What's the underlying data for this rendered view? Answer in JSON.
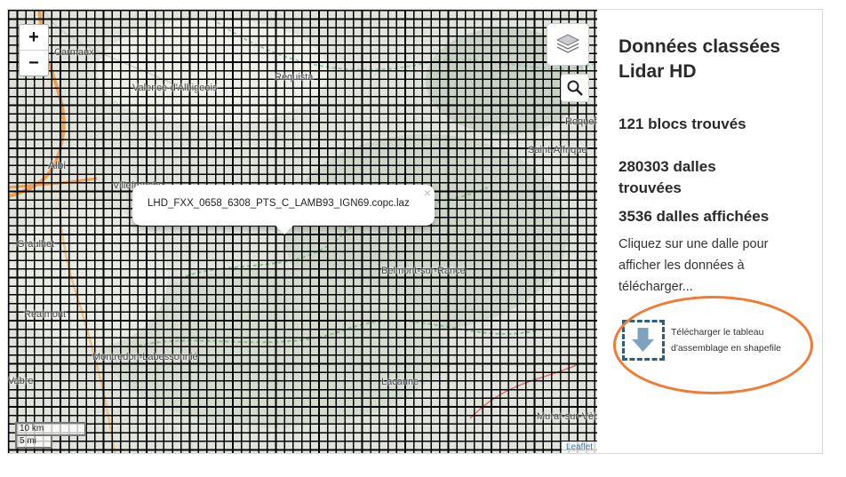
{
  "map": {
    "zoom_in_label": "+",
    "zoom_out_label": "−",
    "layers_icon": "layers-icon",
    "search_icon": "search-icon",
    "popup": {
      "text": "LHD_FXX_0658_6308_PTS_C_LAMB93_IGN69.copc.laz",
      "close_label": "×"
    },
    "scale": {
      "km_label": "10 km",
      "mi_label": "5 mi"
    },
    "attribution": "Leaflet",
    "places": [
      "Carmaux",
      "Valence-d'Albigeois",
      "Réquista",
      "Albi",
      "Villefranche",
      "Belmont-sur-Rance",
      "Réalmont",
      "Montredon-Labessonnié",
      "Lacaune",
      "Murat-sur-Vèbre",
      "Saint-Affrique",
      "Roquefort",
      "Graulhet",
      "Vabre"
    ],
    "colors": {
      "grid": "#000000",
      "road": "#f0a04b",
      "terrain": "#dfe3d9"
    }
  },
  "panel": {
    "title": "Données classées Lidar HD",
    "blocks": "121 blocs trouvés",
    "tiles_found": "280303 dalles trouvées",
    "tiles_shown": "3536 dalles affichées",
    "hint": "Cliquez sur une dalle pour afficher les données à télécharger...",
    "download_label": "Télécharger le tableau d'assemblage en shapefile",
    "download_icon": "download-icon",
    "highlight_color": "#f27a31"
  }
}
